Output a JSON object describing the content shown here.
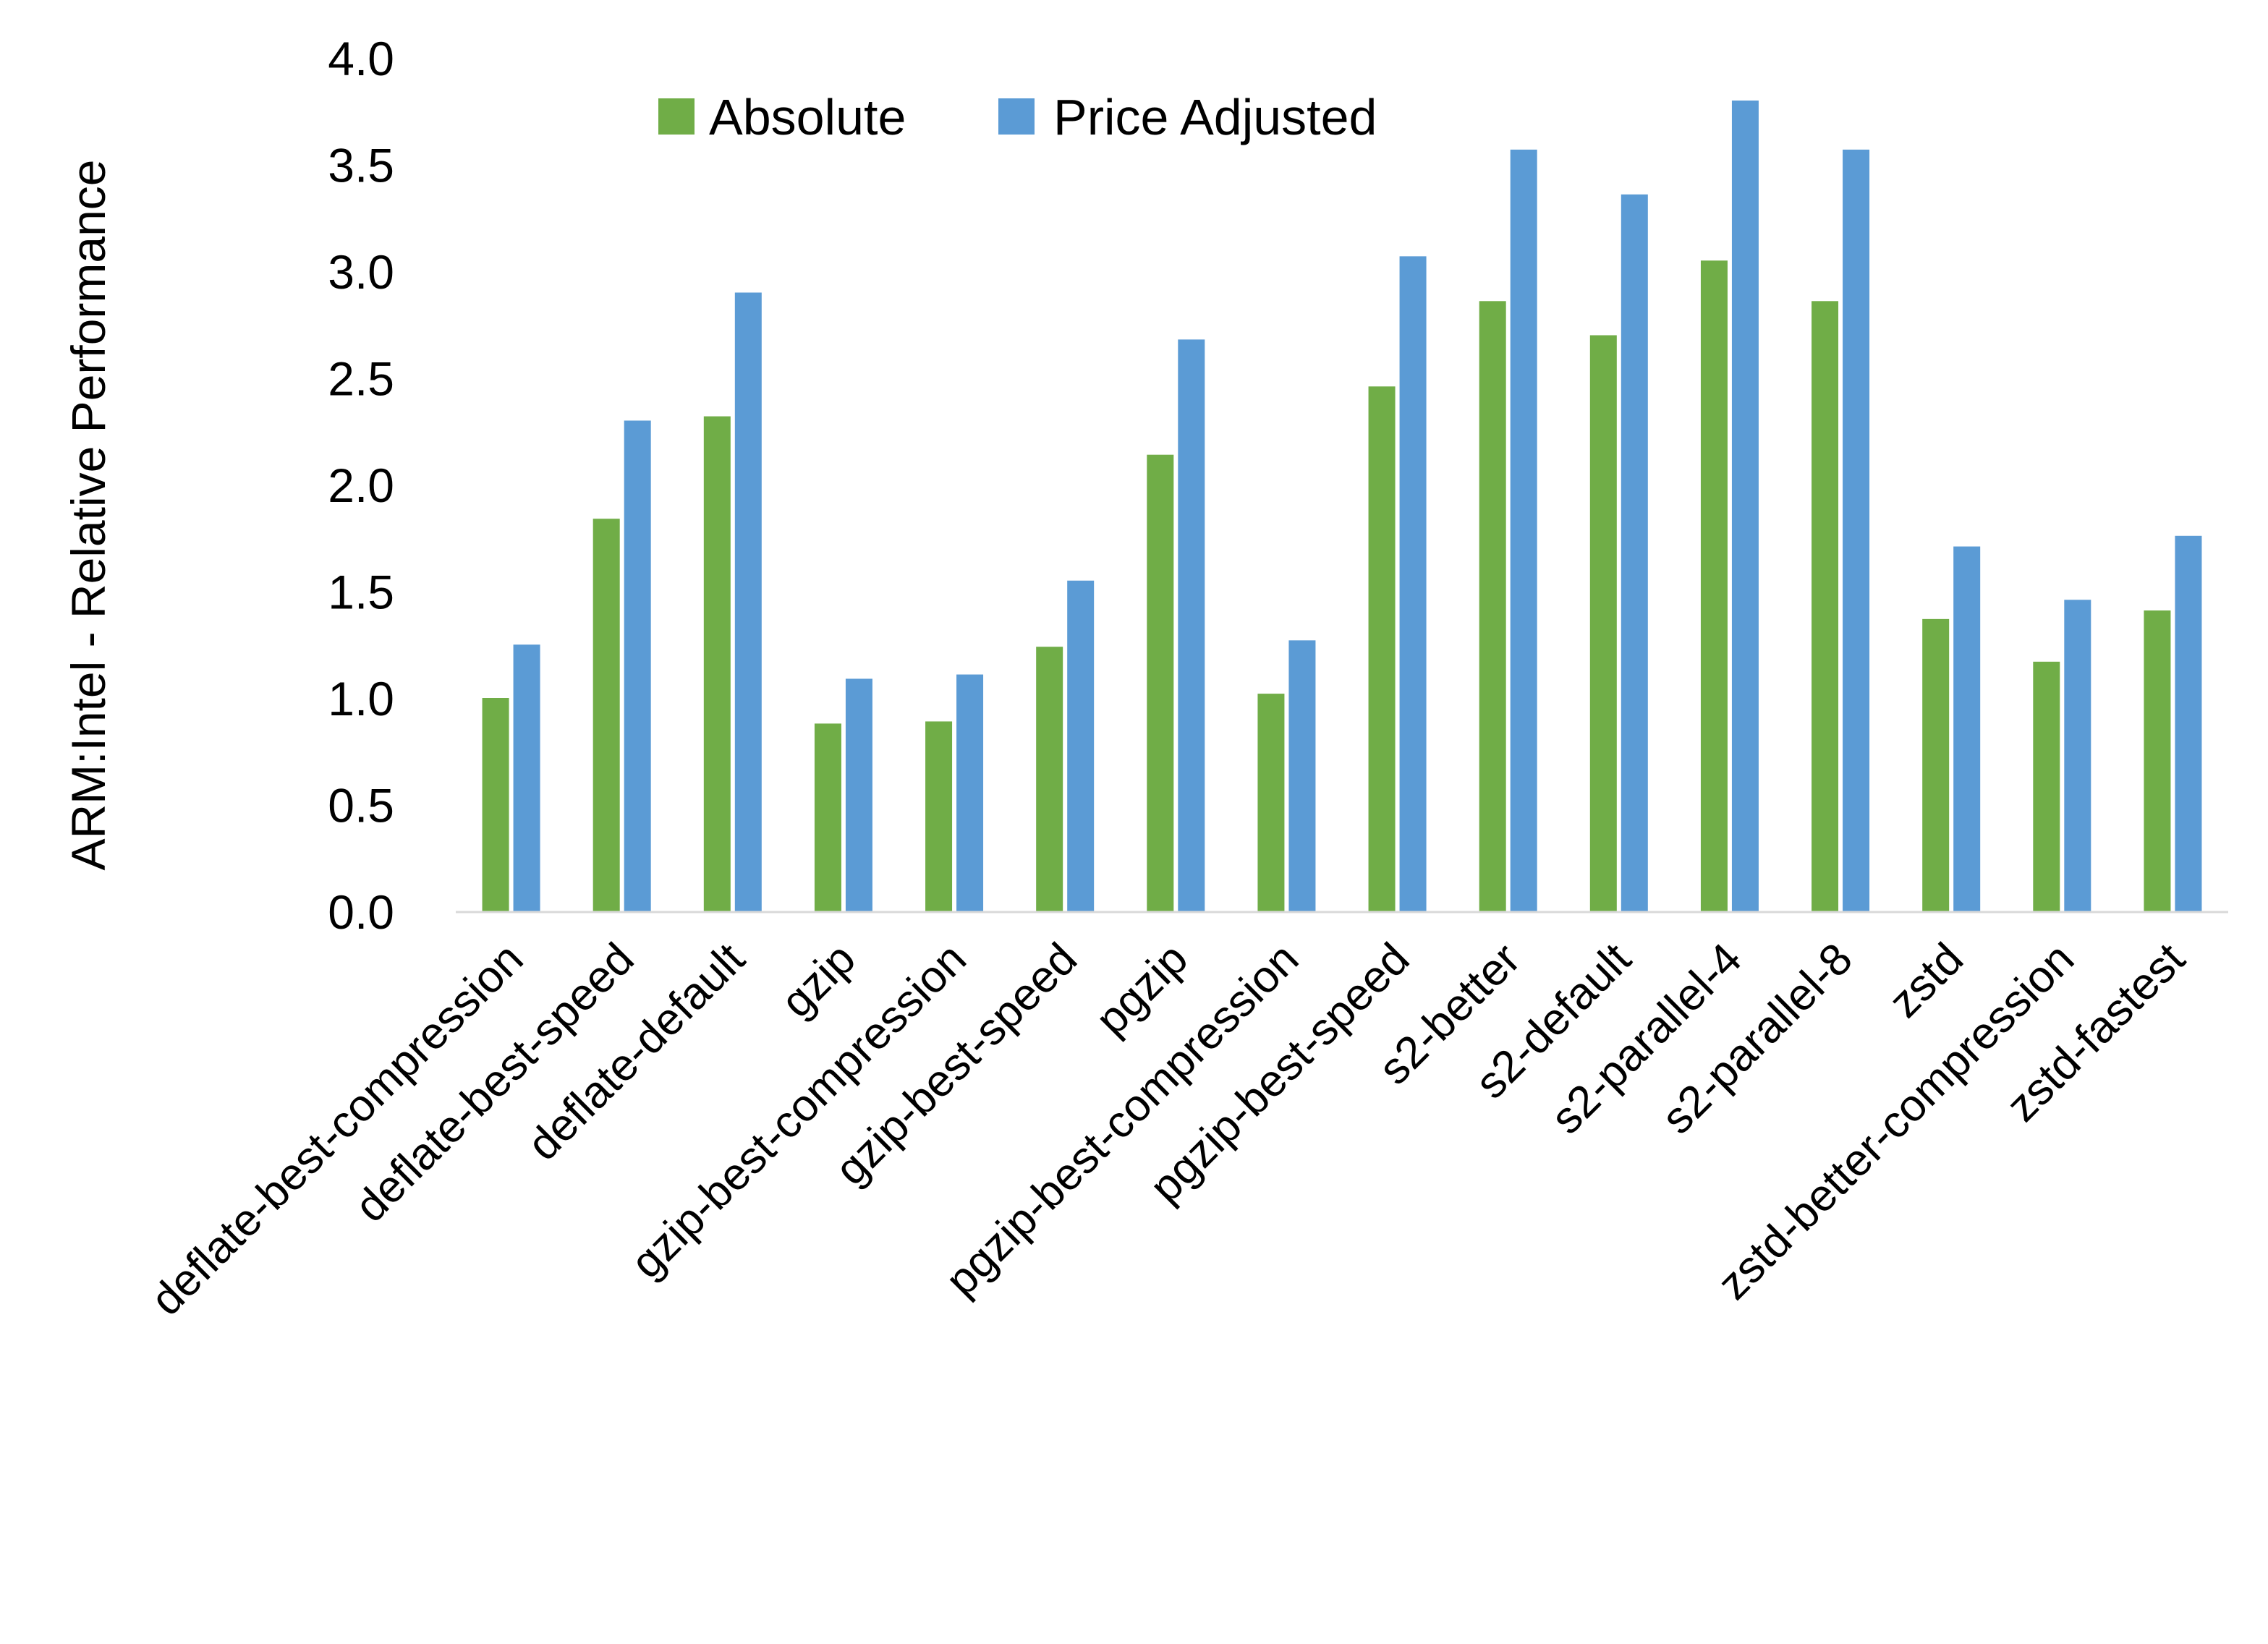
{
  "chart_data": {
    "type": "bar",
    "title": "",
    "xlabel": "",
    "ylabel": "ARM:Intel - Relative Performance",
    "ylim": [
      0,
      4.0
    ],
    "yticks": [
      "0.0",
      "0.5",
      "1.0",
      "1.5",
      "2.0",
      "2.5",
      "3.0",
      "3.5",
      "4.0"
    ],
    "grid": false,
    "legend_position": "top",
    "categories": [
      "deflate-best-compression",
      "deflate-best-speed",
      "deflate-default",
      "gzip",
      "gzip-best-compression",
      "gzip-best-speed",
      "pgzip",
      "pgzip-best-compression",
      "pgzip-best-speed",
      "s2-better",
      "s2-default",
      "s2-parallel-4",
      "s2-parallel-8",
      "zstd",
      "zstd-better-compression",
      "zstd-fastest"
    ],
    "series": [
      {
        "name": "Absolute",
        "color": "#70ad47",
        "values": [
          1.0,
          1.84,
          2.32,
          0.88,
          0.89,
          1.24,
          2.14,
          1.02,
          2.46,
          2.86,
          2.7,
          3.05,
          2.86,
          1.37,
          1.17,
          1.41
        ]
      },
      {
        "name": "Price Adjusted",
        "color": "#5b9bd5",
        "values": [
          1.25,
          2.3,
          2.9,
          1.09,
          1.11,
          1.55,
          2.68,
          1.27,
          3.07,
          3.57,
          3.36,
          3.8,
          3.57,
          1.71,
          1.46,
          1.76
        ]
      }
    ],
    "axis_color": "#d9d9d9"
  }
}
